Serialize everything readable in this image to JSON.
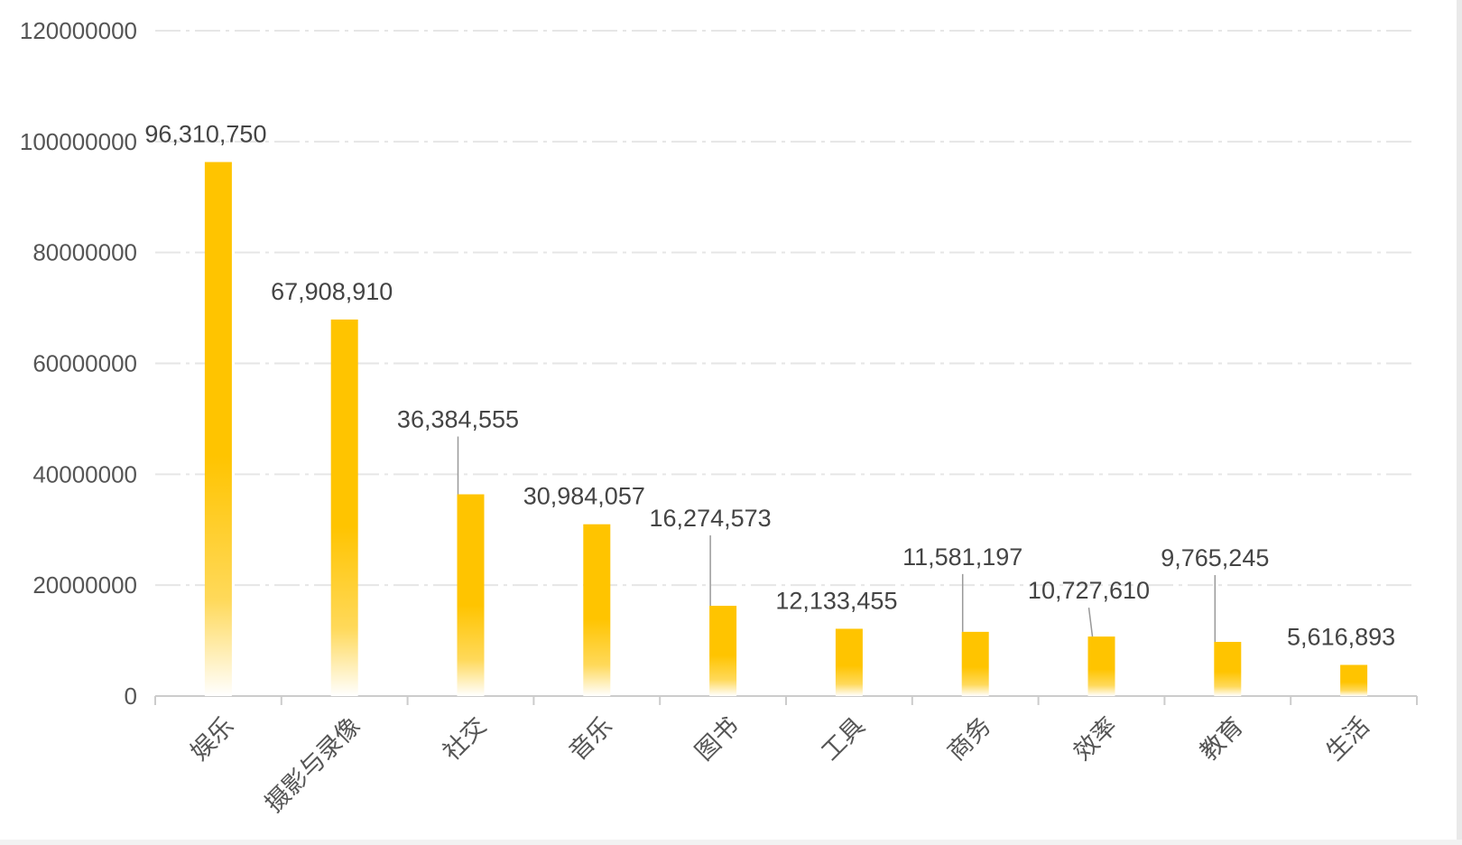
{
  "chart_data": {
    "type": "bar",
    "categories": [
      "娱乐",
      "摄影与录像",
      "社交",
      "音乐",
      "图书",
      "工具",
      "商务",
      "效率",
      "教育",
      "生活"
    ],
    "values": [
      96310750,
      67908910,
      36384555,
      30984057,
      16274573,
      12133455,
      11581197,
      10727610,
      9765245,
      5616893
    ],
    "data_labels": [
      "96,310,750",
      "67,908,910",
      "36,384,555",
      "30,984,057",
      "16,274,573",
      "12,133,455",
      "11,581,197",
      "10,727,610",
      "9,765,245",
      "5,616,893"
    ],
    "y_ticks": [
      "0",
      "20000000",
      "40000000",
      "60000000",
      "80000000",
      "100000000",
      "120000000"
    ],
    "ylim": [
      0,
      120000000
    ],
    "grid": true,
    "legend": "none",
    "colors": {
      "bar_top": "#FFC400",
      "bar_bottom": "#FFFFFF",
      "grid": "#E6E6E6",
      "axis": "#CCCCCC",
      "text": "#555555",
      "leader": "#999999"
    }
  }
}
